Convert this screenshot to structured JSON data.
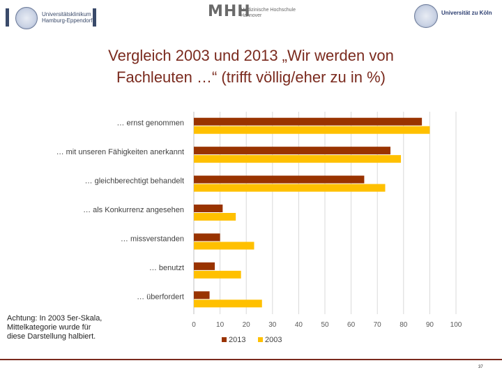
{
  "header": {
    "logo_left_line1": "Universitätsklinikum",
    "logo_left_line2": "Hamburg-Eppendorf",
    "mhh_mark": "MHH",
    "mhh_line1": "Medizinische Hochschule",
    "mhh_line2": "Hannover",
    "logo_right_text": "Universität zu Köln"
  },
  "title": {
    "line1": "Vergleich 2003 und 2013 „Wir werden von",
    "line2": "Fachleuten …“ (trifft völlig/eher zu in %)"
  },
  "note": {
    "line1": "Achtung: In 2003 5er-Skala,",
    "line2": "Mittelkategorie wurde für",
    "line3": "diese Darstellung halbiert."
  },
  "footer": {
    "page_number": "37"
  },
  "colors": {
    "series_2013": "#993300",
    "series_2003": "#ffc000",
    "title": "#7a2a1e",
    "grid": "#d9d9d9"
  },
  "chart_data": {
    "type": "bar",
    "orientation": "horizontal",
    "title": "Vergleich 2003 und 2013 „Wir werden von Fachleuten …“ (trifft völlig/eher zu in %)",
    "categories": [
      "… ernst genommen",
      "… mit unseren Fähigkeiten anerkannt",
      "… gleichberechtigt behandelt",
      "… als Konkurrenz angesehen",
      "… missverstanden",
      "… benutzt",
      "… überfordert"
    ],
    "series": [
      {
        "name": "2013",
        "color": "#993300",
        "values": [
          87,
          75,
          65,
          11,
          10,
          8,
          6
        ]
      },
      {
        "name": "2003",
        "color": "#ffc000",
        "values": [
          90,
          79,
          73,
          16,
          23,
          18,
          26
        ]
      }
    ],
    "xlim": [
      0,
      100
    ],
    "xticks": [
      "0",
      "10",
      "20",
      "30",
      "40",
      "50",
      "60",
      "70",
      "80",
      "90",
      "100"
    ],
    "xlabel": "",
    "ylabel": "",
    "grid": true,
    "legend_position": "bottom"
  }
}
